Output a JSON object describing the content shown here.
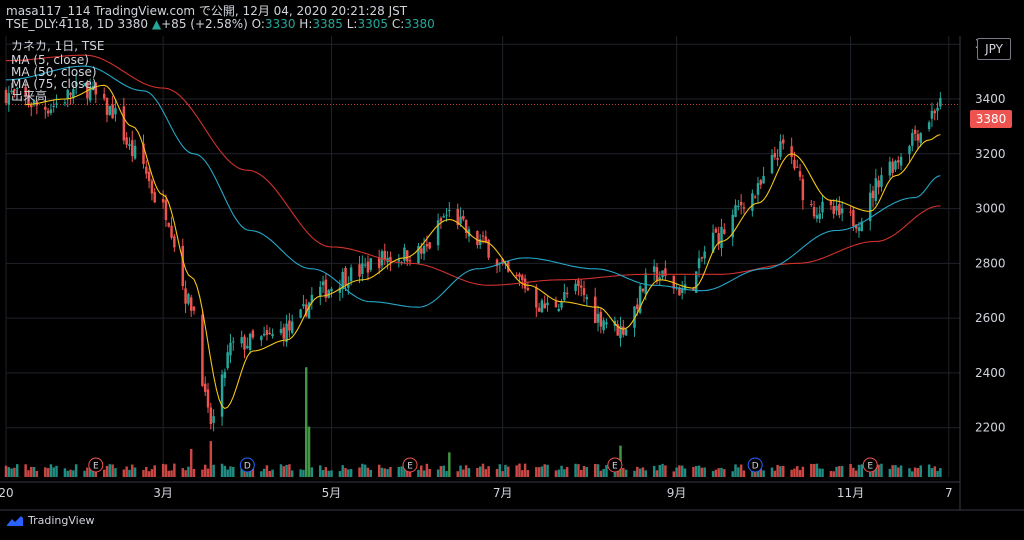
{
  "header": {
    "line1": "masa117_114 TradingView.com で公開, 12月 04, 2020 20:21:28 JST",
    "symbol": "TSE_DLY:4118, 1D",
    "last": "3380",
    "change": "+85 (+2.58%)",
    "open_label": "O:",
    "open": "3330",
    "high_label": "H:",
    "high": "3385",
    "low_label": "L:",
    "low": "3305",
    "close_label": "C:",
    "close": "3380"
  },
  "legend": {
    "title": "カネカ, 1日, TSE",
    "ma5": "MA (5, close)",
    "ma50": "MA (50, close)",
    "ma75": "MA (75, close)",
    "volume": "出来高"
  },
  "currency": "JPY",
  "last_price_badge": "3380",
  "brand": "TradingView",
  "colors": {
    "up": "#26a69a",
    "down": "#ef5350",
    "vol_up": "#26a69a",
    "vol_down": "#ef5350",
    "ma5": "#f5c518",
    "ma50": "#26a6c8",
    "ma75": "#d0312d",
    "highlight_volume": "#4caf50"
  },
  "chart_data": {
    "type": "candlestick",
    "y_axis": {
      "ticks": [
        2200,
        2400,
        2600,
        2800,
        3000,
        3200,
        3400,
        3600
      ],
      "range": [
        2020,
        3630
      ],
      "position": "right"
    },
    "x_axis": {
      "ticks": [
        {
          "label": "20",
          "date": "2020-01-06"
        },
        {
          "label": "3月",
          "date": "2020-03-02"
        },
        {
          "label": "5月",
          "date": "2020-05-01"
        },
        {
          "label": "7月",
          "date": "2020-07-01"
        },
        {
          "label": "9月",
          "date": "2020-09-01"
        },
        {
          "label": "11月",
          "date": "2020-11-02"
        },
        {
          "label": "7",
          "date": "2020-12-07"
        }
      ],
      "range": [
        "2020-01-06",
        "2020-12-11"
      ]
    },
    "grid": true,
    "price_keypoints": [
      [
        "2020-01-06",
        3420
      ],
      [
        "2020-01-20",
        3370
      ],
      [
        "2020-02-03",
        3440
      ],
      [
        "2020-02-12",
        3360
      ],
      [
        "2020-02-21",
        3200
      ],
      [
        "2020-03-02",
        3000
      ],
      [
        "2020-03-12",
        2650
      ],
      [
        "2020-03-19",
        2220
      ],
      [
        "2020-03-27",
        2500
      ],
      [
        "2020-04-06",
        2520
      ],
      [
        "2020-04-16",
        2560
      ],
      [
        "2020-04-27",
        2700
      ],
      [
        "2020-05-08",
        2760
      ],
      [
        "2020-05-20",
        2820
      ],
      [
        "2020-06-02",
        2840
      ],
      [
        "2020-06-12",
        2980
      ],
      [
        "2020-06-22",
        2880
      ],
      [
        "2020-07-06",
        2740
      ],
      [
        "2020-07-16",
        2640
      ],
      [
        "2020-07-28",
        2700
      ],
      [
        "2020-08-05",
        2600
      ],
      [
        "2020-08-12",
        2560
      ],
      [
        "2020-08-24",
        2760
      ],
      [
        "2020-09-04",
        2700
      ],
      [
        "2020-09-15",
        2900
      ],
      [
        "2020-09-28",
        3050
      ],
      [
        "2020-10-09",
        3220
      ],
      [
        "2020-10-20",
        3000
      ],
      [
        "2020-11-04",
        2960
      ],
      [
        "2020-11-16",
        3160
      ],
      [
        "2020-11-26",
        3280
      ],
      [
        "2020-12-04",
        3380
      ]
    ],
    "ma5_keypoints": [
      [
        "2020-01-13",
        3380
      ],
      [
        "2020-01-27",
        3400
      ],
      [
        "2020-02-10",
        3450
      ],
      [
        "2020-02-20",
        3300
      ],
      [
        "2020-03-02",
        3050
      ],
      [
        "2020-03-12",
        2750
      ],
      [
        "2020-03-24",
        2270
      ],
      [
        "2020-04-03",
        2480
      ],
      [
        "2020-04-15",
        2520
      ],
      [
        "2020-04-27",
        2680
      ],
      [
        "2020-05-12",
        2740
      ],
      [
        "2020-05-27",
        2820
      ],
      [
        "2020-06-12",
        2960
      ],
      [
        "2020-06-24",
        2880
      ],
      [
        "2020-07-10",
        2720
      ],
      [
        "2020-07-22",
        2660
      ],
      [
        "2020-08-04",
        2640
      ],
      [
        "2020-08-13",
        2560
      ],
      [
        "2020-08-26",
        2740
      ],
      [
        "2020-09-07",
        2710
      ],
      [
        "2020-09-17",
        2880
      ],
      [
        "2020-09-30",
        3020
      ],
      [
        "2020-10-12",
        3200
      ],
      [
        "2020-10-26",
        3030
      ],
      [
        "2020-11-09",
        2990
      ],
      [
        "2020-11-18",
        3120
      ],
      [
        "2020-11-30",
        3250
      ],
      [
        "2020-12-04",
        3270
      ]
    ],
    "ma50_keypoints": [
      [
        "2020-01-06",
        3470
      ],
      [
        "2020-02-03",
        3520
      ],
      [
        "2020-02-24",
        3430
      ],
      [
        "2020-03-13",
        3200
      ],
      [
        "2020-04-02",
        2920
      ],
      [
        "2020-04-24",
        2780
      ],
      [
        "2020-05-15",
        2660
      ],
      [
        "2020-06-01",
        2640
      ],
      [
        "2020-06-22",
        2780
      ],
      [
        "2020-07-09",
        2820
      ],
      [
        "2020-08-03",
        2780
      ],
      [
        "2020-08-24",
        2720
      ],
      [
        "2020-09-10",
        2700
      ],
      [
        "2020-10-02",
        2780
      ],
      [
        "2020-10-28",
        2920
      ],
      [
        "2020-11-25",
        3040
      ],
      [
        "2020-12-04",
        3120
      ]
    ],
    "ma75_keypoints": [
      [
        "2020-01-06",
        3540
      ],
      [
        "2020-02-03",
        3560
      ],
      [
        "2020-03-02",
        3440
      ],
      [
        "2020-04-01",
        3140
      ],
      [
        "2020-05-01",
        2860
      ],
      [
        "2020-05-29",
        2800
      ],
      [
        "2020-06-26",
        2720
      ],
      [
        "2020-07-22",
        2740
      ],
      [
        "2020-08-21",
        2760
      ],
      [
        "2020-09-16",
        2760
      ],
      [
        "2020-10-14",
        2800
      ],
      [
        "2020-11-11",
        2880
      ],
      [
        "2020-12-04",
        3010
      ]
    ],
    "volume_spikes": [
      {
        "date": "2020-04-22",
        "level": 0.98,
        "up": true
      },
      {
        "date": "2020-04-23",
        "level": 0.45,
        "up": true
      },
      {
        "date": "2020-03-19",
        "level": 0.32,
        "up": false
      },
      {
        "date": "2020-03-12",
        "level": 0.25,
        "up": false
      },
      {
        "date": "2020-08-12",
        "level": 0.28,
        "up": true
      },
      {
        "date": "2020-06-12",
        "level": 0.22,
        "up": true
      }
    ],
    "events": [
      {
        "date": "2020-02-07",
        "type": "E"
      },
      {
        "date": "2020-04-01",
        "type": "D"
      },
      {
        "date": "2020-05-29",
        "type": "E"
      },
      {
        "date": "2020-08-10",
        "type": "E"
      },
      {
        "date": "2020-09-29",
        "type": "D"
      },
      {
        "date": "2020-11-09",
        "type": "E"
      }
    ],
    "last_price": 3380
  }
}
